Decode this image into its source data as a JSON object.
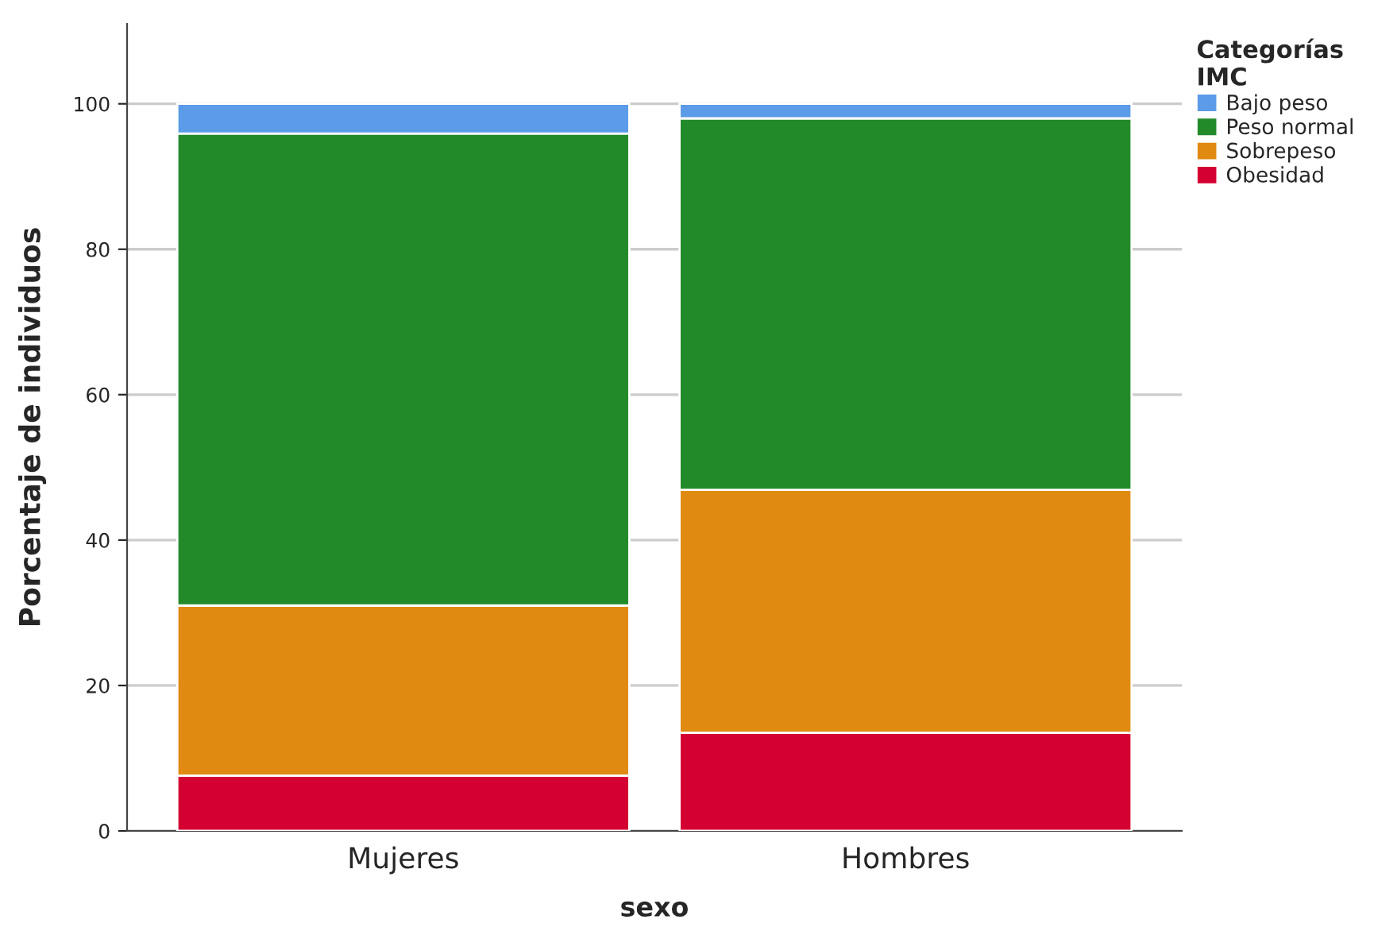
{
  "chart_data": {
    "type": "bar",
    "xlabel": "sexo",
    "ylabel": "Porcentaje de individuos",
    "legend_title": "Categorías\nIMC",
    "categories": [
      "Mujeres",
      "Hombres"
    ],
    "stacked": true,
    "ylim": [
      0,
      111
    ],
    "yticks": [
      0,
      20,
      40,
      60,
      80,
      100
    ],
    "grid": "y",
    "legend": "top right",
    "series": [
      {
        "name": "Obesidad",
        "color": "#d40032",
        "values": [
          7.6,
          13.5
        ]
      },
      {
        "name": "Sobrepeso",
        "color": "#e08a12",
        "values": [
          23.4,
          33.4
        ]
      },
      {
        "name": "Peso normal",
        "color": "#238a2a",
        "values": [
          64.9,
          51.1
        ]
      },
      {
        "name": "Bajo peso",
        "color": "#5b9be8",
        "values": [
          4.1,
          2.0
        ]
      }
    ]
  }
}
